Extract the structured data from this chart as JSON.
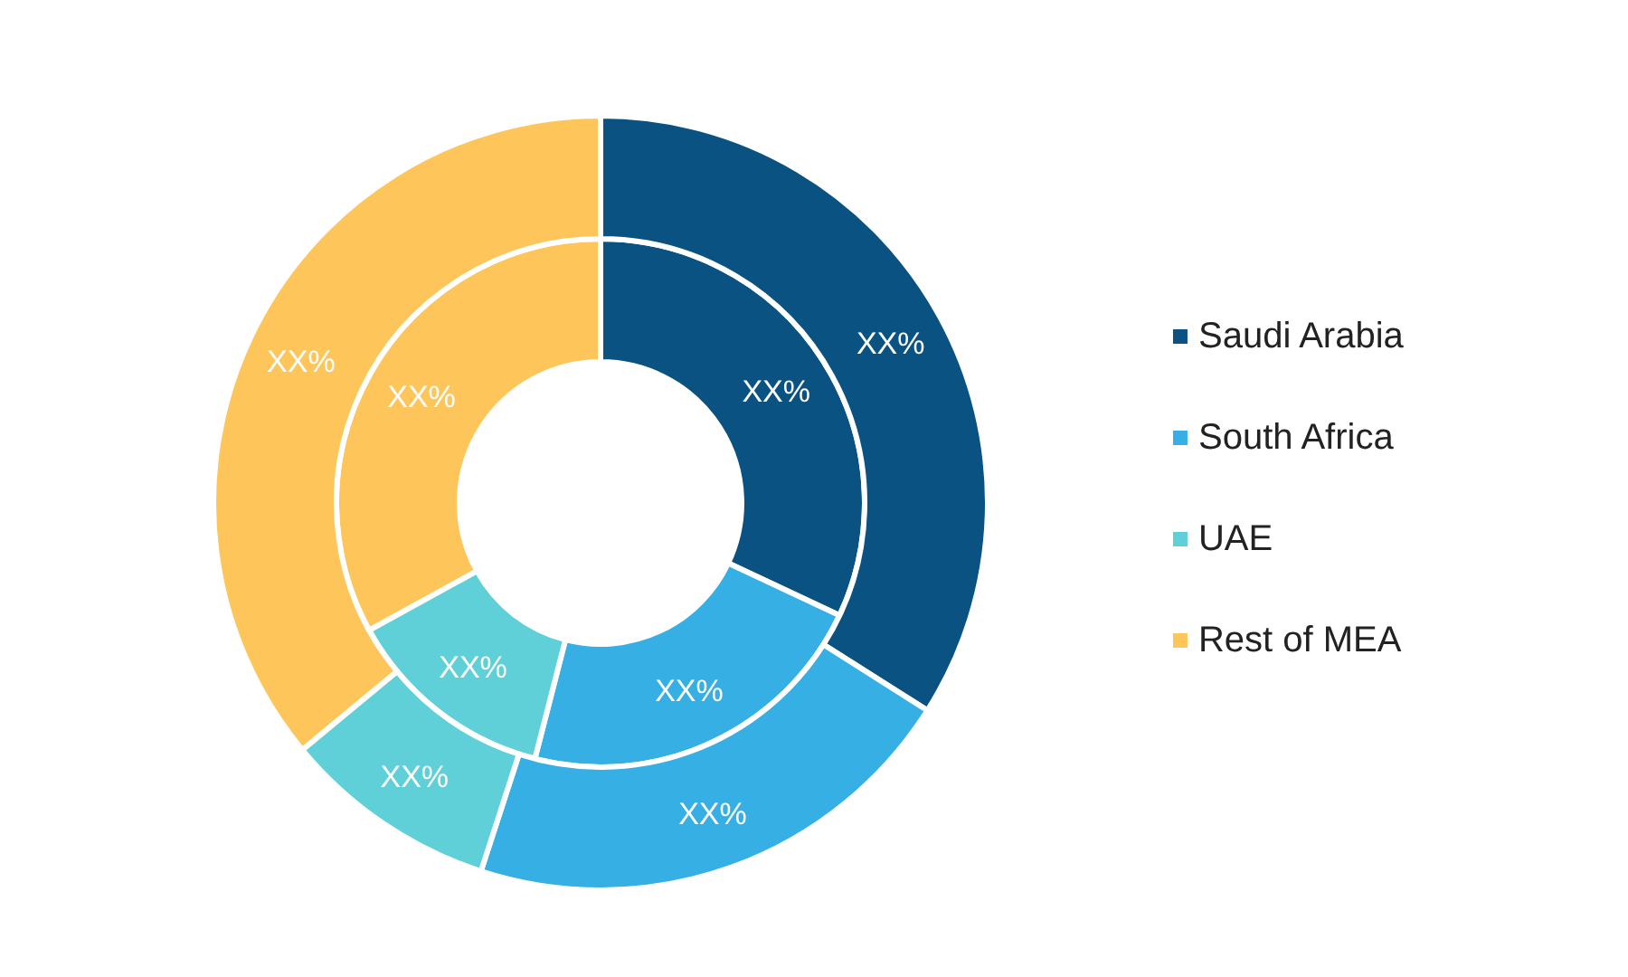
{
  "chart_data": {
    "type": "donut",
    "categories": [
      "Saudi Arabia",
      "South Africa",
      "UAE",
      "Rest of MEA"
    ],
    "colors": [
      "#0a5282",
      "#36b0e4",
      "#5fd0d8",
      "#fec55b"
    ],
    "legend": "right",
    "series": [
      {
        "values": [
          32,
          22,
          13,
          33
        ],
        "value_labels": [
          "XX%",
          "XX%",
          "XX%",
          "XX%"
        ]
      },
      {
        "values": [
          34,
          21,
          9,
          36
        ],
        "value_labels": [
          "XX%",
          "XX%",
          "XX%",
          "XX%"
        ]
      }
    ]
  }
}
